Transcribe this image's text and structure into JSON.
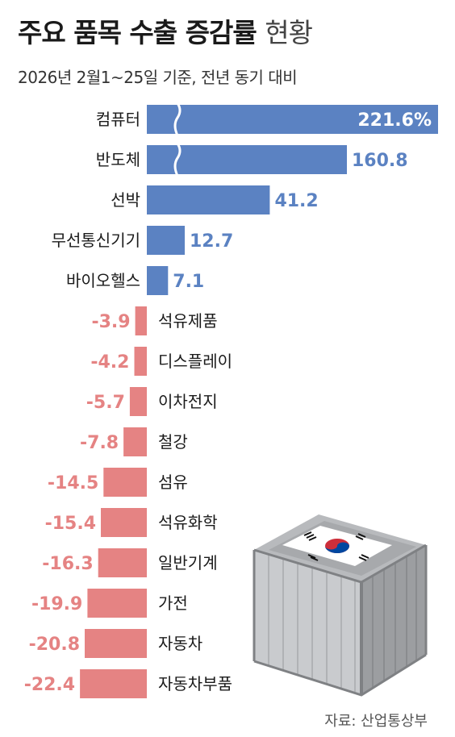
{
  "title": {
    "main": "주요 품목 수출 증감률",
    "suffix": "현황"
  },
  "subtitle": "2026년 2월1~25일 기준, 전년 동기 대비",
  "source": "자료: 산업통상부",
  "colors": {
    "positive": "#5b82c2",
    "negative": "#e58383",
    "break_mark": "#ffffff"
  },
  "illustration": "shipping-container-korean-flag-icon",
  "chart_data": {
    "type": "bar",
    "orientation": "horizontal",
    "title": "주요 품목 수출 증감률 현황",
    "subtitle": "2026년 2월1~25일 기준, 전년 동기 대비",
    "value_unit": "%",
    "axis_break_on": [
      "컴퓨터",
      "반도체"
    ],
    "categories": [
      "컴퓨터",
      "반도체",
      "선박",
      "무선통신기기",
      "바이오헬스",
      "석유제품",
      "디스플레이",
      "이차전지",
      "철강",
      "섬유",
      "석유화학",
      "일반기계",
      "가전",
      "자동차",
      "자동차부품"
    ],
    "values": [
      221.6,
      160.8,
      41.2,
      12.7,
      7.1,
      -3.9,
      -4.2,
      -5.7,
      -7.8,
      -14.5,
      -15.4,
      -16.3,
      -19.9,
      -20.8,
      -22.4
    ],
    "value_labels": [
      "221.6%",
      "160.8",
      "41.2",
      "12.7",
      "7.1",
      "-3.9",
      "-4.2",
      "-5.7",
      "-7.8",
      "-14.5",
      "-15.4",
      "-16.3",
      "-19.9",
      "-20.8",
      "-22.4"
    ]
  }
}
